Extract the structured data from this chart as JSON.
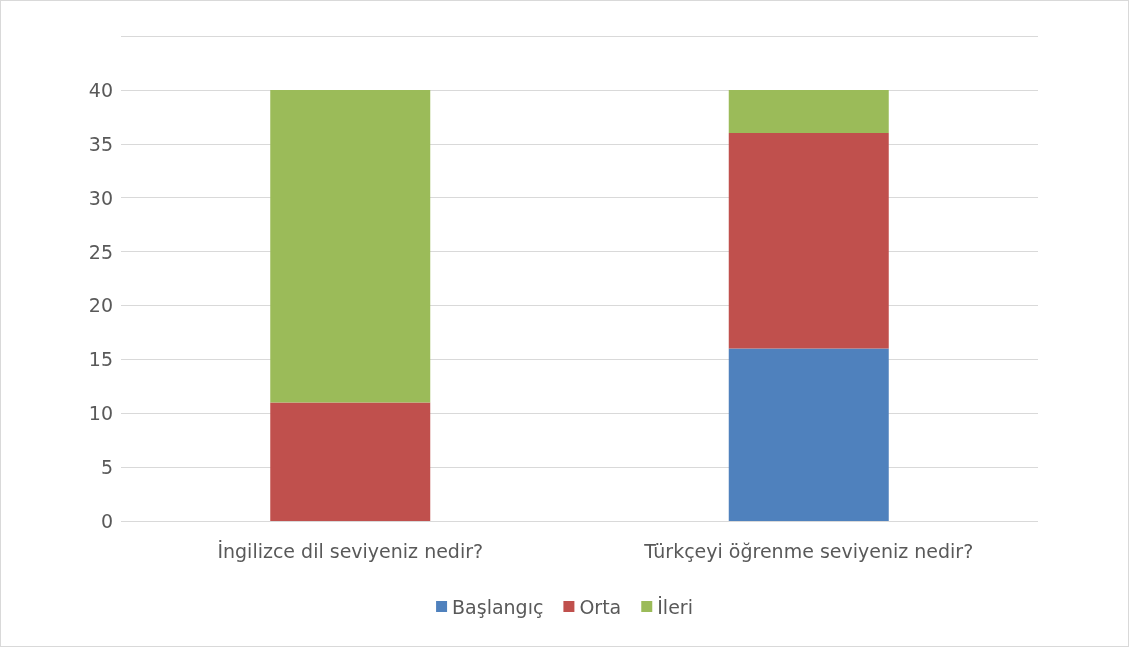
{
  "chart_data": {
    "type": "bar",
    "stacked": true,
    "categories": [
      "İngilizce dil seviyeniz nedir?",
      "Türkçeyi öğrenme seviyeniz nedir?"
    ],
    "series": [
      {
        "name": "Başlangıç",
        "color": "#4f81bd",
        "values": [
          0,
          16
        ]
      },
      {
        "name": "Orta",
        "color": "#c0504d",
        "values": [
          11,
          20
        ]
      },
      {
        "name": "İleri",
        "color": "#9bbb59",
        "values": [
          29,
          4
        ]
      }
    ],
    "ylim": [
      0,
      45
    ],
    "yticks": [
      0,
      5,
      10,
      15,
      20,
      25,
      30,
      35,
      40,
      {
        "value": 45,
        "label": null
      }
    ],
    "grid": true,
    "legend": "bottom"
  }
}
